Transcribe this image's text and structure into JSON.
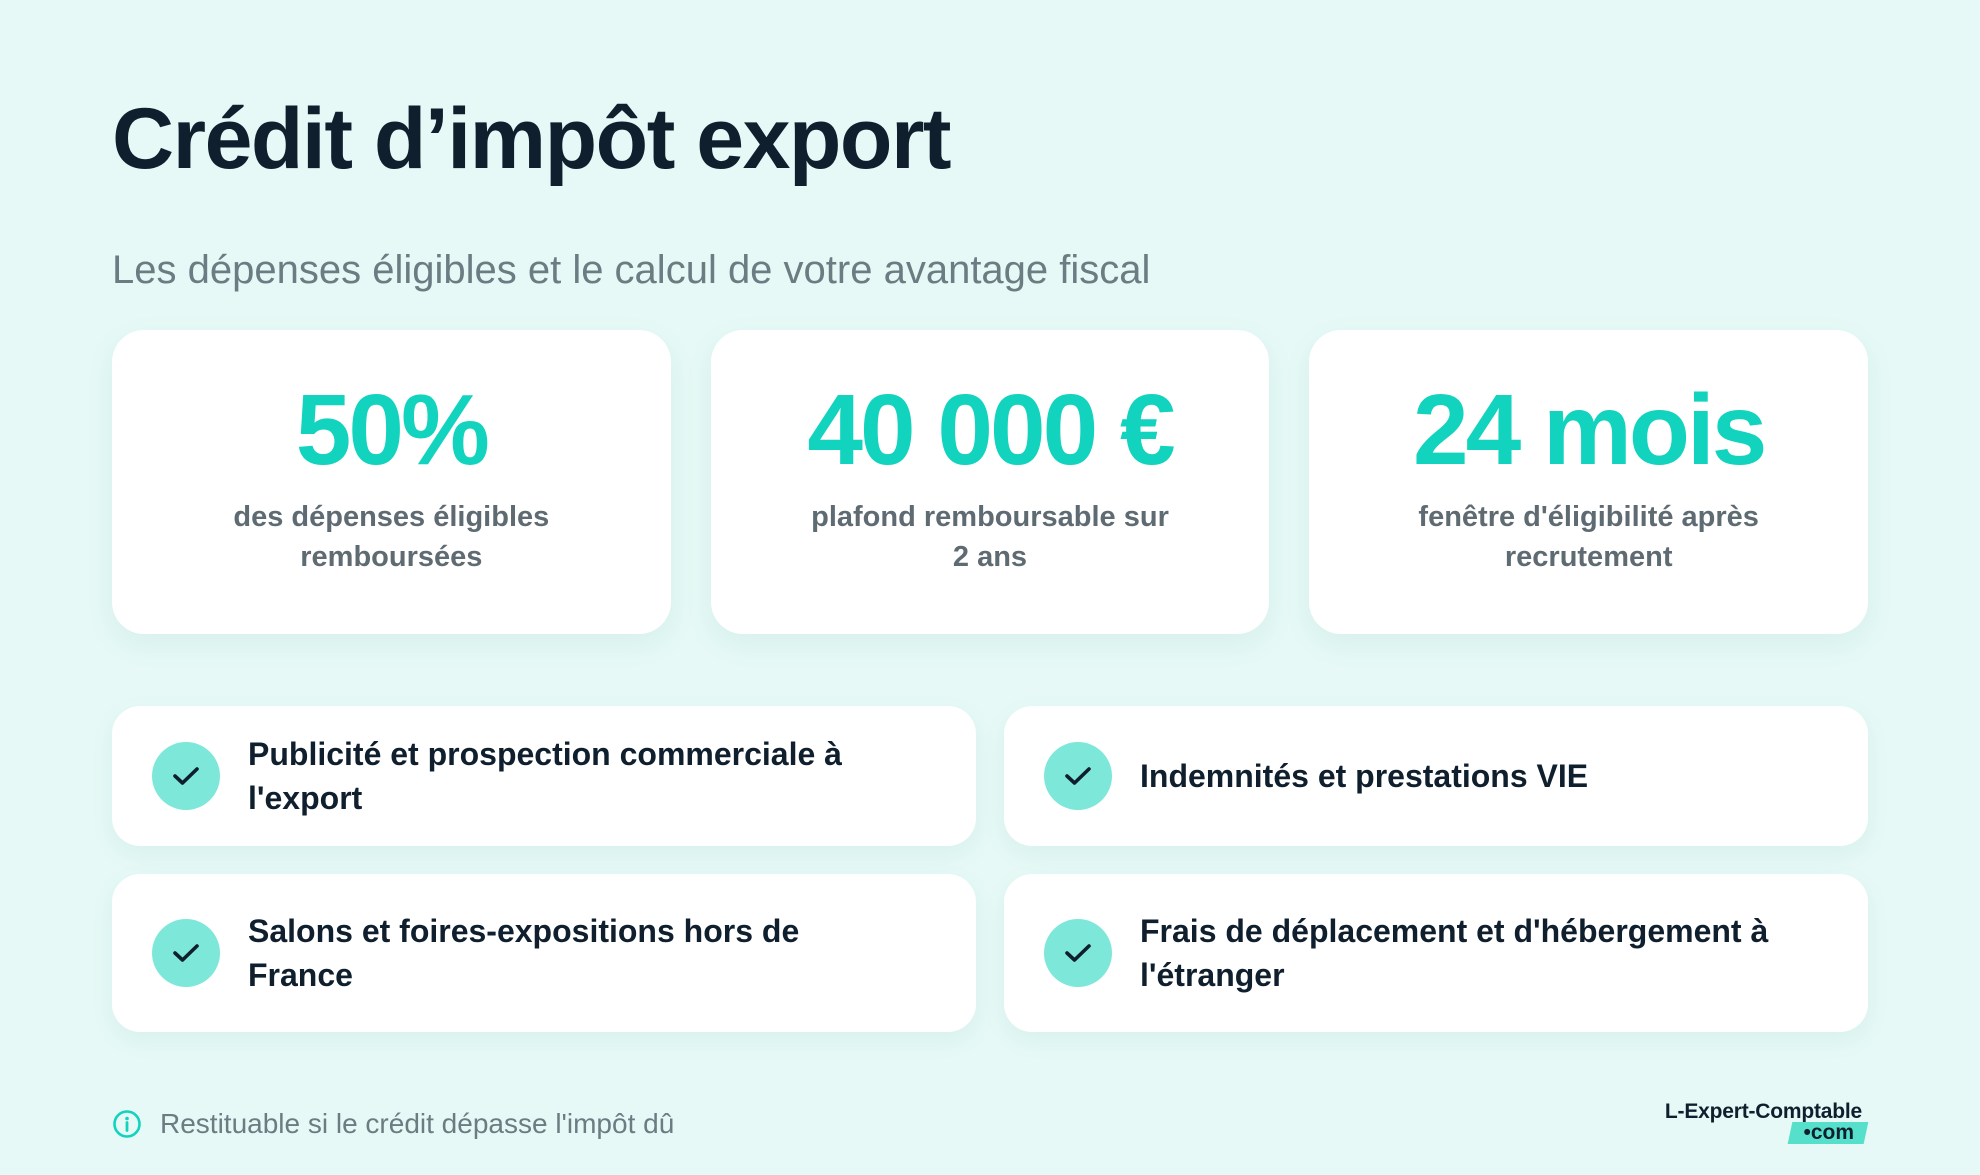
{
  "header": {
    "title": "Crédit d’impôt export",
    "subtitle": "Les dépenses éligibles et le calcul de votre avantage fiscal"
  },
  "stats": [
    {
      "value": "50%",
      "label": "des dépenses éligibles remboursées"
    },
    {
      "value": "40 000 €",
      "label": "plafond remboursable sur 2 ans"
    },
    {
      "value": "24 mois",
      "label": "fenêtre d'éligibilité après recrutement"
    }
  ],
  "features": [
    {
      "text": "Publicité et prospection commerciale à l'export",
      "icon": "check-icon"
    },
    {
      "text": "Indemnités et prestations VIE",
      "icon": "check-icon"
    },
    {
      "text": "Salons et foires-expositions hors de France",
      "icon": "check-icon"
    },
    {
      "text": "Frais de déplacement et d'hébergement à l'étranger",
      "icon": "check-icon"
    }
  ],
  "footer": {
    "note": "Restituable si le crédit dépasse l'impôt dû",
    "note_icon": "info-icon",
    "logo_name": "L-Expert-Comptable",
    "logo_suffix": "•com"
  },
  "colors": {
    "background": "#e6f9f6",
    "accent": "#12d3bd",
    "check_bg": "#7de8d9",
    "title": "#0f1f2e",
    "muted": "#6b7c82"
  }
}
